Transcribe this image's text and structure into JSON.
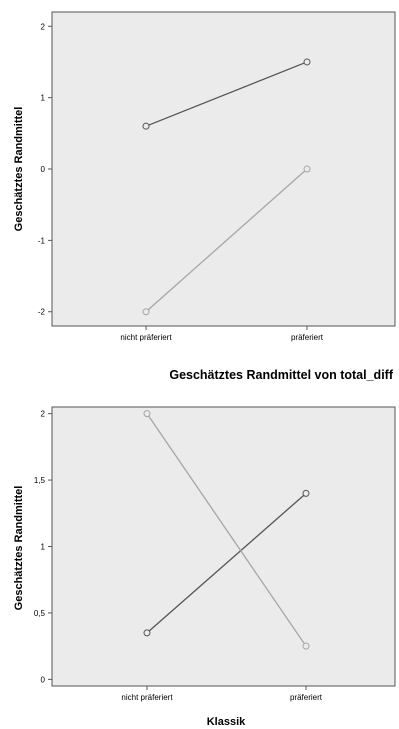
{
  "chart_data": [
    {
      "type": "line",
      "categories": [
        "nicht präferiert",
        "präferiert"
      ],
      "ylabel": "Geschätztes Randmittel",
      "xlabel": "",
      "ylim": [
        -2.2,
        2.2
      ],
      "yticks": [
        "-2",
        "-1",
        "0",
        "1",
        "2"
      ],
      "series": [
        {
          "values": [
            0.6,
            1.5
          ],
          "color": "#555555"
        },
        {
          "values": [
            -2.0,
            0.0
          ],
          "color": "#a6a6a6"
        }
      ],
      "plot_background": "#ebebeb"
    },
    {
      "type": "line",
      "title": "Geschätztes Randmittel von total_diff",
      "categories": [
        "nicht präferiert",
        "präferiert"
      ],
      "ylabel": "Geschätztes Randmittel",
      "xlabel": "Klassik",
      "ylim": [
        -0.05,
        2.05
      ],
      "yticks": [
        "0",
        "0,5",
        "1",
        "1,5",
        "2"
      ],
      "series": [
        {
          "values": [
            0.35,
            1.4
          ],
          "color": "#555555"
        },
        {
          "values": [
            2.0,
            0.25
          ],
          "color": "#a6a6a6"
        }
      ],
      "plot_background": "#ebebeb"
    }
  ]
}
